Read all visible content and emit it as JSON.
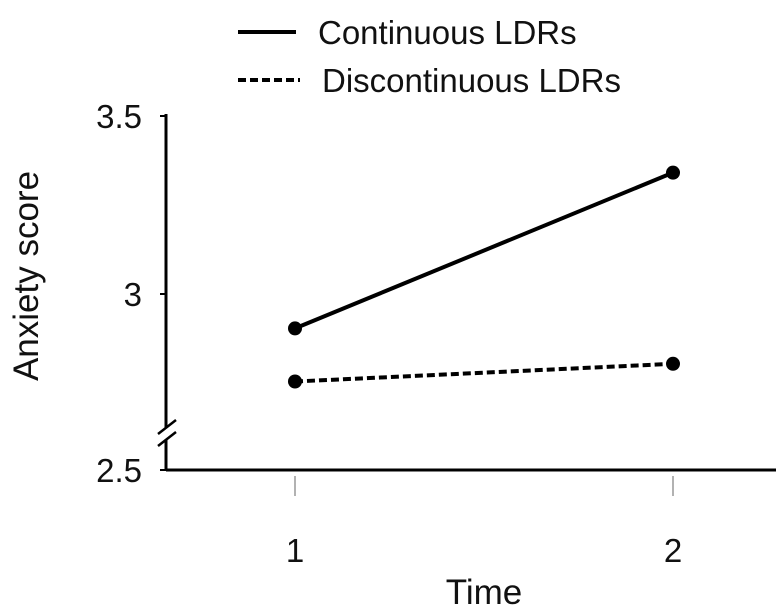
{
  "chart_data": {
    "type": "line",
    "x": [
      1,
      2
    ],
    "xlabel": "Time",
    "ylabel": "Anxiety score",
    "ylim": [
      2.5,
      3.5
    ],
    "yticks": [
      "3.5",
      "3",
      "2.5"
    ],
    "xticks": [
      "1",
      "2"
    ],
    "y_axis_break": true,
    "grid": false,
    "legend_position": "top",
    "series": [
      {
        "name": "Continuous LDRs",
        "values": [
          2.9,
          3.34
        ],
        "style": "solid",
        "color": "#000000"
      },
      {
        "name": "Discontinuous LDRs",
        "values": [
          2.75,
          2.8
        ],
        "style": "dashed",
        "color": "#000000"
      }
    ]
  }
}
